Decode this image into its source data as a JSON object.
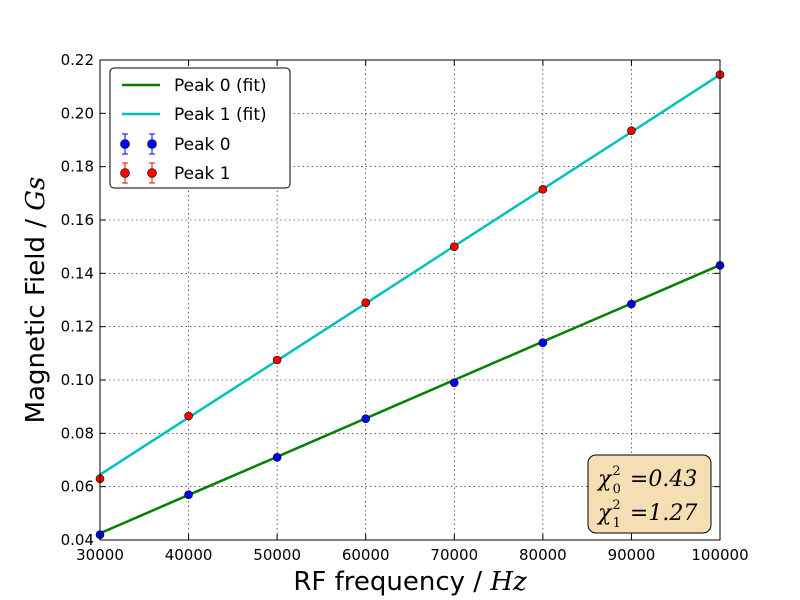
{
  "chart_data": {
    "type": "scatter",
    "title": "",
    "xlabel": "RF frequency",
    "xlabel_unit": "Hz",
    "ylabel": "Magnetic Field",
    "ylabel_unit": "Gs",
    "label_separator": " / ",
    "xlim": [
      30000,
      100000
    ],
    "ylim": [
      0.04,
      0.22
    ],
    "x_ticks": [
      30000,
      40000,
      50000,
      60000,
      70000,
      80000,
      90000,
      100000
    ],
    "y_ticks": [
      0.04,
      0.06,
      0.08,
      0.1,
      0.12,
      0.14,
      0.16,
      0.18,
      0.2,
      0.22
    ],
    "x_tick_labels": [
      "30000",
      "40000",
      "50000",
      "60000",
      "70000",
      "80000",
      "90000",
      "100000"
    ],
    "y_tick_labels": [
      "0.04",
      "0.06",
      "0.08",
      "0.10",
      "0.12",
      "0.14",
      "0.16",
      "0.18",
      "0.20",
      "0.22"
    ],
    "grid": true,
    "legend_position": "top-left",
    "x": [
      30000,
      40000,
      50000,
      60000,
      70000,
      80000,
      90000,
      100000
    ],
    "series": [
      {
        "name": "Peak 0",
        "kind": "points",
        "marker_color": "#0000ff",
        "errorbar_color": "#0000ff",
        "values": [
          0.042,
          0.057,
          0.071,
          0.0855,
          0.099,
          0.114,
          0.1285,
          0.143
        ]
      },
      {
        "name": "Peak 1",
        "kind": "points",
        "marker_color": "#ff0000",
        "errorbar_color": "#ff0000",
        "values": [
          0.063,
          0.0865,
          0.1075,
          0.129,
          0.15,
          0.1715,
          0.1935,
          0.2145
        ]
      },
      {
        "name": "Peak 0 (fit)",
        "kind": "line",
        "color": "#008000",
        "values": [
          0.0425,
          0.0569,
          0.0712,
          0.0856,
          0.1,
          0.1144,
          0.1287,
          0.1431
        ]
      },
      {
        "name": "Peak 1 (fit)",
        "kind": "line",
        "color": "#00bfbf",
        "values": [
          0.0645,
          0.0859,
          0.1073,
          0.1287,
          0.1502,
          0.1716,
          0.193,
          0.2145
        ]
      }
    ],
    "legend_order": [
      "Peak 0 (fit)",
      "Peak 1 (fit)",
      "Peak 0",
      "Peak 1"
    ],
    "annotation": {
      "position": "bottom-right",
      "background": "#f5deb3",
      "lines": [
        {
          "symbol": "χ",
          "subscript": "0",
          "superscript": "2",
          "text": " =0.43"
        },
        {
          "symbol": "χ",
          "subscript": "1",
          "superscript": "2",
          "text": " =1.27"
        }
      ]
    }
  }
}
